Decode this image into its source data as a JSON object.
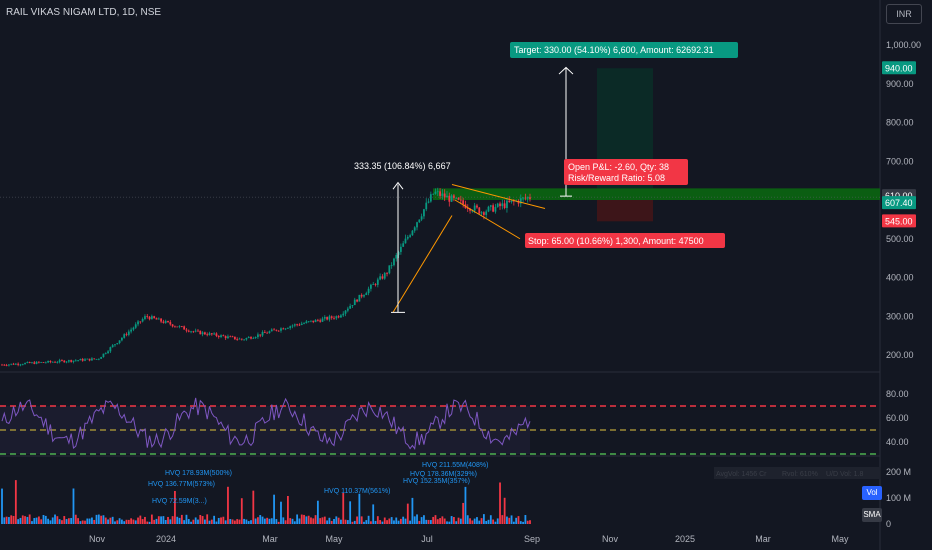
{
  "header": {
    "symbol_title": "RAIL VIKAS NIGAM LTD, 1D, NSE",
    "currency": "INR"
  },
  "colors": {
    "bg": "#131722",
    "up": "#089981",
    "down": "#f23645",
    "grid": "#1e222d",
    "rsi_line": "#7e57c2",
    "green_zone": "#0b5e12",
    "target_zone": "#0b2a26",
    "stop_zone": "#3d1519"
  },
  "price_axis": {
    "ticks": [
      "1,000.00",
      "900.00",
      "800.00",
      "700.00",
      "600.00",
      "500.00",
      "400.00",
      "300.00",
      "200.00"
    ]
  },
  "price_tags": [
    {
      "label": "940.00",
      "kind": "green"
    },
    {
      "label": "610.00",
      "kind": "grey"
    },
    {
      "label": "607.40",
      "kind": "green"
    },
    {
      "label": "545.00",
      "kind": "red"
    }
  ],
  "rsi_axis": {
    "ticks": [
      "80.00",
      "60.00",
      "40.00"
    ]
  },
  "vol_axis": {
    "ticks": [
      "200 M",
      "100 M",
      "0"
    ]
  },
  "vol_buttons": {
    "vol": "Vol",
    "sma": "SMA"
  },
  "vol_stats": [
    "AvgVol: 1456 Cr",
    "Rvol: 610%",
    "U/D Vol: 1.8"
  ],
  "time_axis": {
    "labels": [
      "Nov",
      "2024",
      "Mar",
      "May",
      "Jul",
      "Sep",
      "Nov",
      "2025",
      "Mar",
      "May"
    ]
  },
  "annotations": {
    "target": "Target: 330.00 (54.10%) 6,600, Amount: 62692.31",
    "measure": "333.35 (106.84%) 6,667",
    "open_pl": "Open P&L: -2.60, Qty: 38",
    "rr": "Risk/Reward Ratio: 5.08",
    "stop": "Stop: 65.00 (10.66%) 1,300, Amount: 47500"
  },
  "hvq_labels": [
    "HVQ 178.93M(500%)",
    "HVQ 136.77M(573%)",
    "HVQ 72.59M(3...)",
    "HVQ 110.37M(561%)",
    "HVQ 211.55M(408%)",
    "HVQ 178.36M(329%)",
    "HVQ 152.35M(357%)"
  ],
  "chart_data": {
    "type": "candlestick",
    "title": "RAIL VIKAS NIGAM LTD, 1D, NSE",
    "y_range": [
      170,
      1040
    ],
    "x": [
      "Nov",
      "2024",
      "Mar",
      "May",
      "Jul",
      "Sep",
      "Nov",
      "2025",
      "Mar",
      "May"
    ],
    "price_series": [
      {
        "t": "2023-10",
        "close": 175
      },
      {
        "t": "2023-11",
        "close": 182
      },
      {
        "t": "2023-12",
        "close": 190
      },
      {
        "t": "2024-01",
        "close": 300
      },
      {
        "t": "2024-02",
        "close": 260
      },
      {
        "t": "2024-03",
        "close": 240
      },
      {
        "t": "2024-04",
        "close": 275
      },
      {
        "t": "2024-05",
        "close": 300
      },
      {
        "t": "2024-06",
        "close": 410
      },
      {
        "t": "2024-07",
        "close": 620
      },
      {
        "t": "2024-08",
        "close": 570
      },
      {
        "t": "2024-09",
        "close": 607.4
      }
    ],
    "trade": {
      "entry": 610.0,
      "last": 607.4,
      "target": 940.0,
      "stop": 545.0,
      "qty": 38,
      "risk_reward": 5.08
    },
    "rsi": {
      "levels": [
        70,
        50,
        30
      ],
      "range": [
        25,
        90
      ]
    },
    "volume": {
      "unit": "M",
      "max": 211.55
    }
  }
}
